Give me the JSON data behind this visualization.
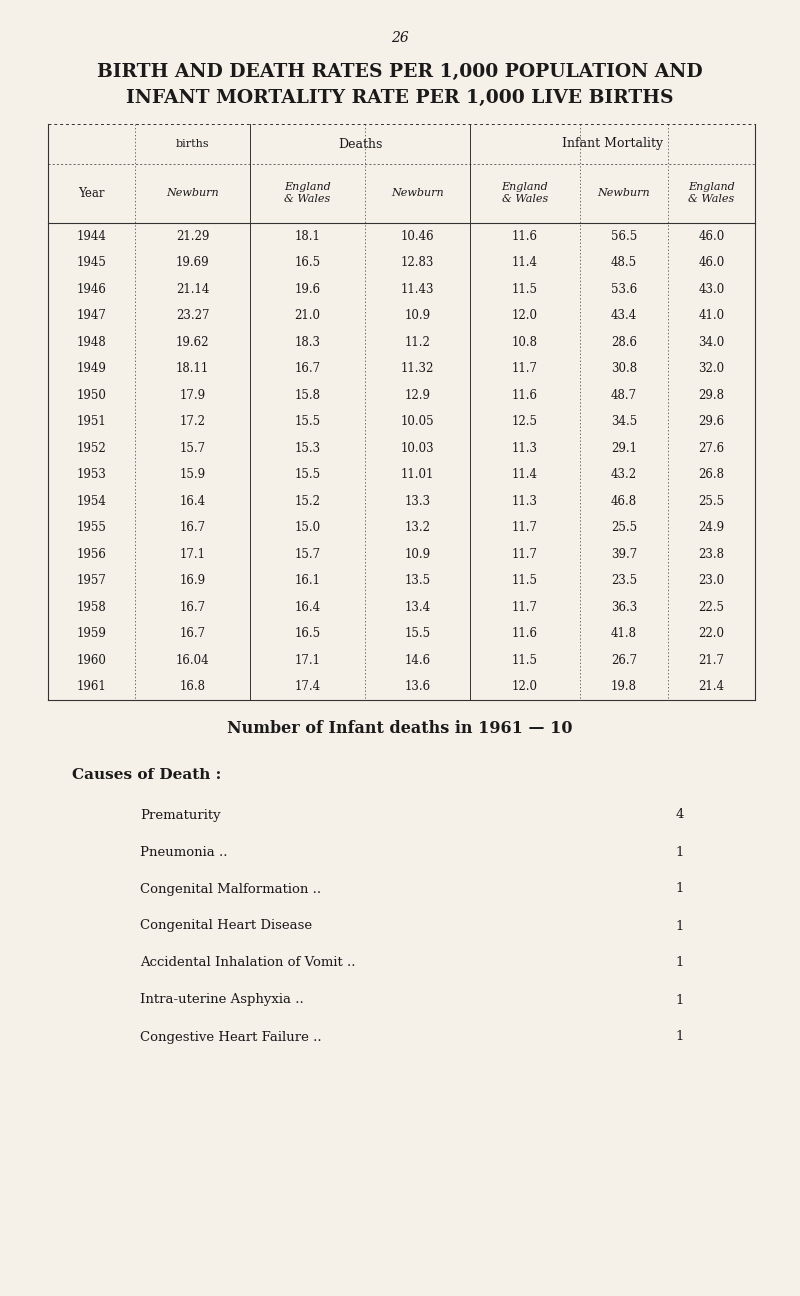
{
  "page_number": "26",
  "title_line1": "BIRTH AND DEATH RATES PER 1,000 POPULATION AND",
  "title_line2": "INFANT MORTALITY RATE PER 1,000 LIVE BIRTHS",
  "bg_color": "#f5f0e8",
  "text_color": "#1a1a1a",
  "col_headers_top": [
    "births",
    "Deaths",
    "Infant Mortality"
  ],
  "year_header": "Year",
  "years": [
    "1944",
    "1945",
    "1946",
    "1947",
    "1948",
    "1949",
    "1950",
    "1951",
    "1952",
    "1953",
    "1954",
    "1955",
    "1956",
    "1957",
    "1958",
    "1959",
    "1960",
    "1961"
  ],
  "births_newburn": [
    "21.29",
    "19.69",
    "21.14",
    "23.27",
    "19.62",
    "18.11",
    "17.9",
    "17.2",
    "15.7",
    "15.9",
    "16.4",
    "16.7",
    "17.1",
    "16.9",
    "16.7",
    "16.7",
    "16.04",
    "16.8"
  ],
  "births_ew": [
    "18.1",
    "16.5",
    "19.6",
    "21.0",
    "18.3",
    "16.7",
    "15.8",
    "15.5",
    "15.3",
    "15.5",
    "15.2",
    "15.0",
    "15.7",
    "16.1",
    "16.4",
    "16.5",
    "17.1",
    "17.4"
  ],
  "deaths_newburn": [
    "10.46",
    "12.83",
    "11.43",
    "10.9",
    "11.2",
    "11.32",
    "12.9",
    "10.05",
    "10.03",
    "11.01",
    "13.3",
    "13.2",
    "10.9",
    "13.5",
    "13.4",
    "15.5",
    "14.6",
    "13.6"
  ],
  "deaths_ew": [
    "11.6",
    "11.4",
    "11.5",
    "12.0",
    "10.8",
    "11.7",
    "11.6",
    "12.5",
    "11.3",
    "11.4",
    "11.3",
    "11.7",
    "11.7",
    "11.5",
    "11.7",
    "11.6",
    "11.5",
    "12.0"
  ],
  "infant_newburn": [
    "56.5",
    "48.5",
    "53.6",
    "43.4",
    "28.6",
    "30.8",
    "48.7",
    "34.5",
    "29.1",
    "43.2",
    "46.8",
    "25.5",
    "39.7",
    "23.5",
    "36.3",
    "41.8",
    "26.7",
    "19.8"
  ],
  "infant_ew": [
    "46.0",
    "46.0",
    "43.0",
    "41.0",
    "34.0",
    "32.0",
    "29.8",
    "29.6",
    "27.6",
    "26.8",
    "25.5",
    "24.9",
    "23.8",
    "23.0",
    "22.5",
    "22.0",
    "21.7",
    "21.4"
  ],
  "infant_deaths_note": "Number of Infant deaths in 1961 — 10",
  "causes_header": "Causes of Death :",
  "causes": [
    [
      "Prematurity",
      "4"
    ],
    [
      "Pneumonia ..",
      "1"
    ],
    [
      "Congenital Malformation ..",
      "1"
    ],
    [
      "Congenital Heart Disease",
      "1"
    ],
    [
      "Accidental Inhalation of Vomit ..",
      "1"
    ],
    [
      "Intra-uterine Asphyxia ..",
      "1"
    ],
    [
      "Congestive Heart Failure ..",
      "1"
    ]
  ]
}
